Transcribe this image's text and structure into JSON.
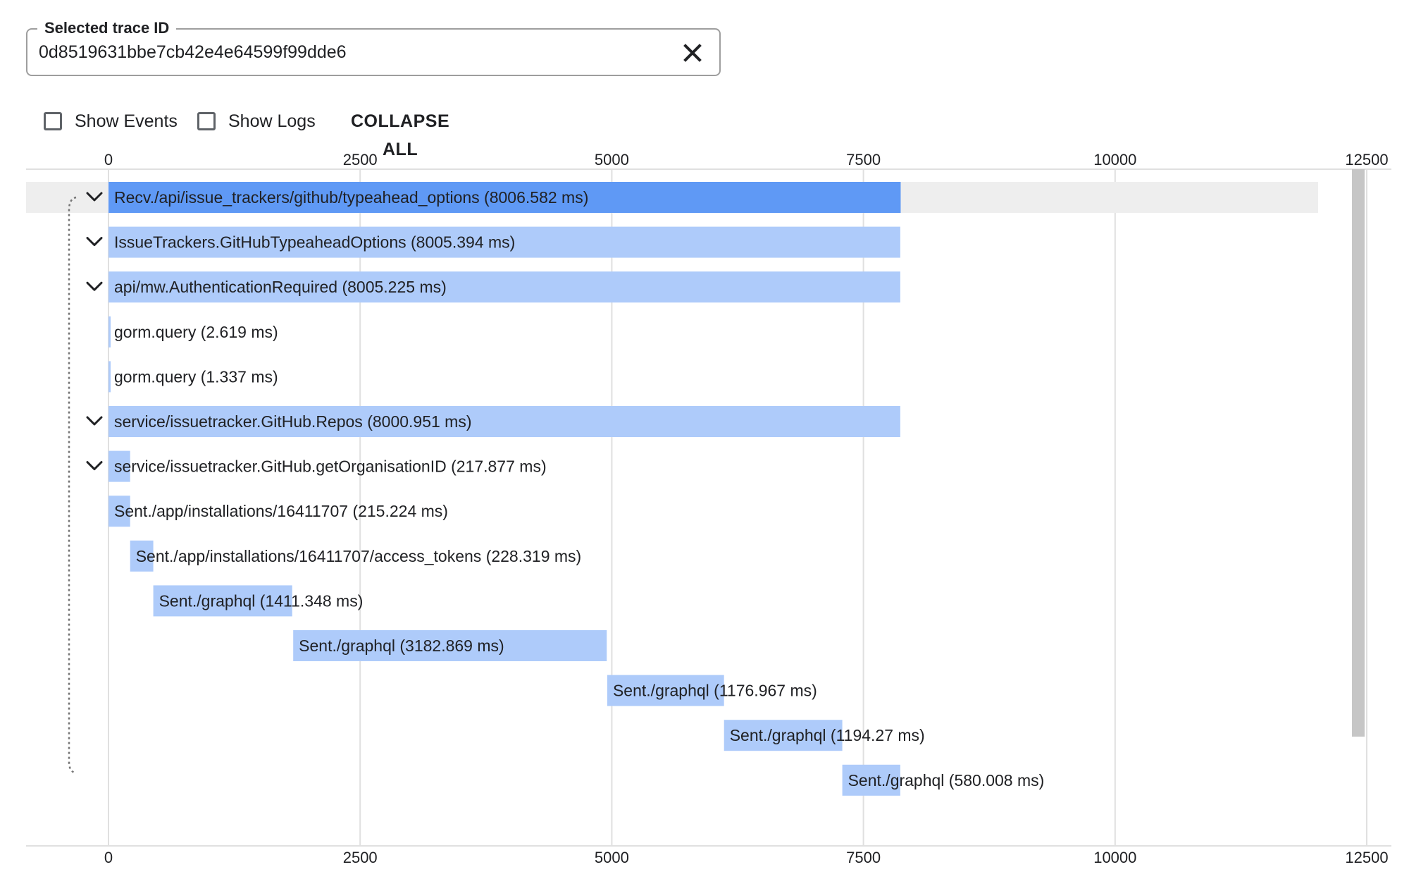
{
  "trace_field": {
    "label": "Selected trace ID",
    "value": "0d8519631bbe7cb42e4e64599f99dde6",
    "clear_icon": "close-icon"
  },
  "toolbar": {
    "show_events_label": "Show Events",
    "show_events_checked": false,
    "show_logs_label": "Show Logs",
    "show_logs_checked": false,
    "collapse_all_label": "COLLAPSE ALL"
  },
  "colors": {
    "selected_span": "#5f99f5",
    "span": "#aecbfa",
    "selected_row_bg": "#eeeeee",
    "gridline": "#e0e0e0",
    "scrollbar_thumb": "#c6c6c6"
  },
  "chart_data": {
    "type": "gantt",
    "x_range": [
      0,
      12500
    ],
    "ticks": [
      "0",
      "2500",
      "5000",
      "7500",
      "10000",
      "12500"
    ],
    "tick_values": [
      0,
      2500,
      5000,
      7500,
      10000,
      12500
    ],
    "spans": [
      {
        "label": "Recv./api/issue_trackers/github/typeahead_options (8006.582 ms)",
        "start": 0,
        "end": 7870,
        "expandable": true,
        "selected": true
      },
      {
        "label": "IssueTrackers.GitHubTypeaheadOptions (8005.394 ms)",
        "start": 0,
        "end": 7866,
        "expandable": true,
        "selected": false
      },
      {
        "label": "api/mw.AuthenticationRequired (8005.225 ms)",
        "start": 0,
        "end": 7866,
        "expandable": true,
        "selected": false
      },
      {
        "label": "gorm.query (2.619 ms)",
        "start": 0,
        "end": 20,
        "expandable": false,
        "selected": false
      },
      {
        "label": "gorm.query (1.337 ms)",
        "start": 0,
        "end": 15,
        "expandable": false,
        "selected": false
      },
      {
        "label": "service/issuetracker.GitHub.Repos (8000.951 ms)",
        "start": 0,
        "end": 7866,
        "expandable": true,
        "selected": false
      },
      {
        "label": "service/issuetracker.GitHub.getOrganisationID (217.877 ms)",
        "start": 0,
        "end": 215,
        "expandable": true,
        "selected": false
      },
      {
        "label": "Sent./app/installations/16411707 (215.224 ms)",
        "start": 0,
        "end": 215,
        "expandable": false,
        "selected": false
      },
      {
        "label": "Sent./app/installations/16411707/access_tokens (228.319 ms)",
        "start": 215,
        "end": 445,
        "expandable": false,
        "selected": false
      },
      {
        "label": "Sent./graphql (1411.348 ms)",
        "start": 445,
        "end": 1825,
        "expandable": false,
        "selected": false
      },
      {
        "label": "Sent./graphql (3182.869 ms)",
        "start": 1835,
        "end": 4950,
        "expandable": false,
        "selected": false
      },
      {
        "label": "Sent./graphql (1176.967 ms)",
        "start": 4955,
        "end": 6115,
        "expandable": false,
        "selected": false
      },
      {
        "label": "Sent./graphql (1194.27 ms)",
        "start": 6115,
        "end": 7290,
        "expandable": false,
        "selected": false
      },
      {
        "label": "Sent./graphql (580.008 ms)",
        "start": 7290,
        "end": 7866,
        "expandable": false,
        "selected": false
      }
    ]
  }
}
